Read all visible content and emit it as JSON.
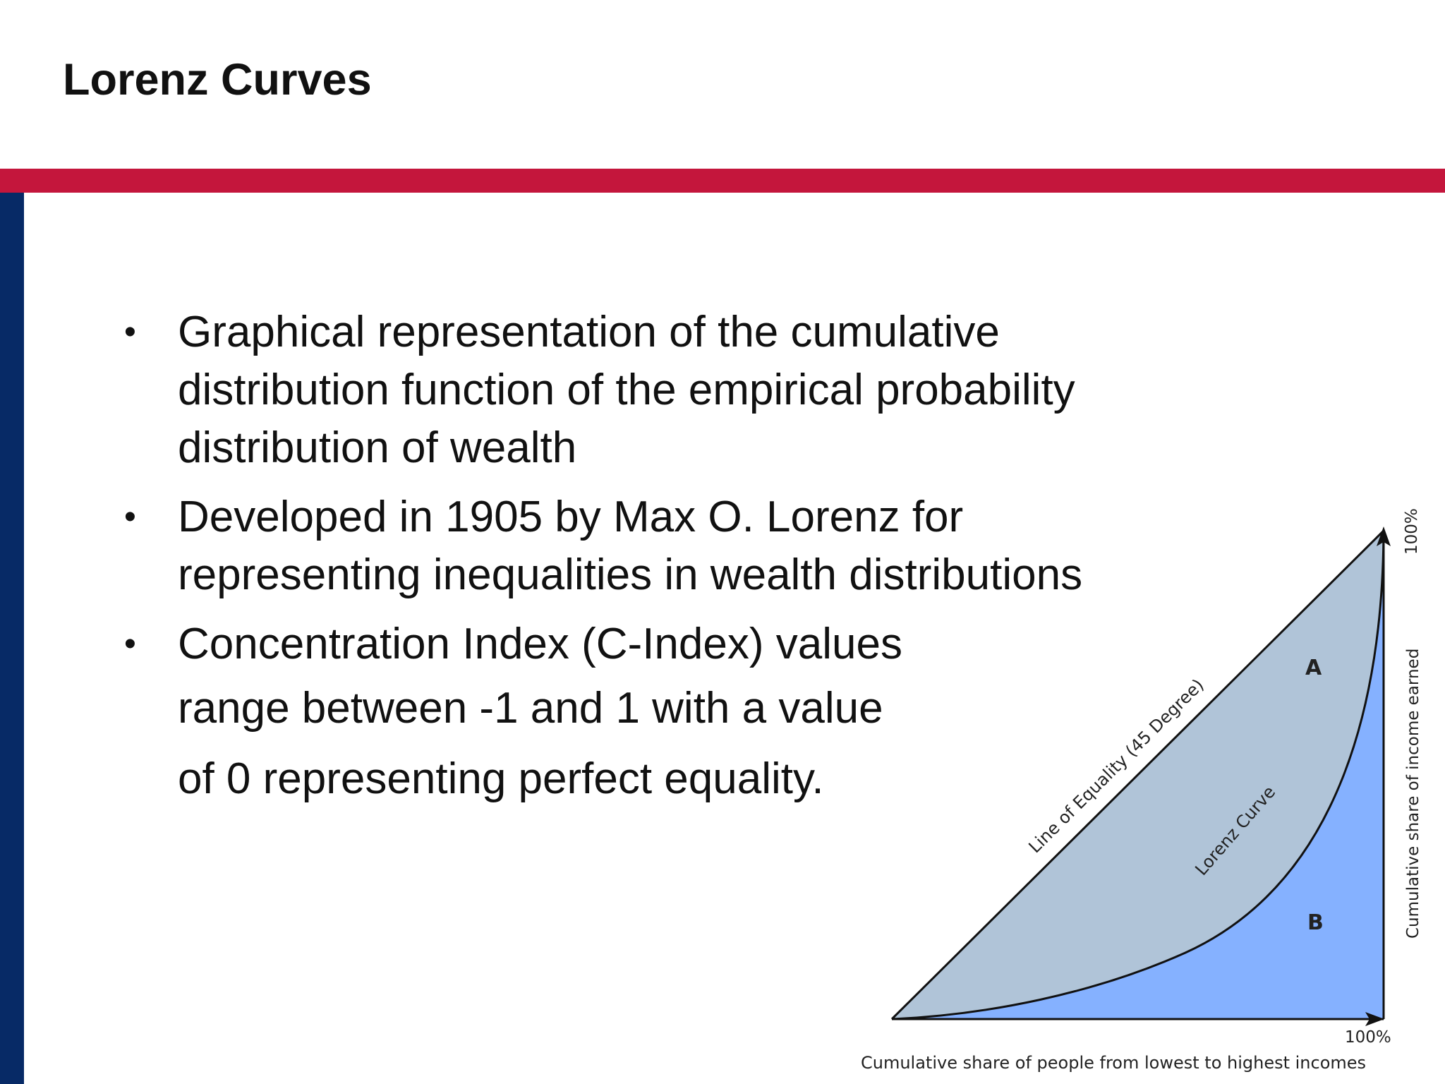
{
  "slide": {
    "title": "Lorenz Curves",
    "accent_red": "#c4163c",
    "accent_navy": "#072a66"
  },
  "bullets": [
    {
      "text": "Graphical representation of the cumulative distribution function of the empirical probability distribution of wealth"
    },
    {
      "text": "Developed in 1905 by Max O. Lorenz for representing inequalities in wealth distributions"
    },
    {
      "lines": [
        "Concentration Index (C-Index) values",
        "range between -1 and 1 with a value",
        "of 0 representing perfect equality."
      ]
    }
  ],
  "figure": {
    "equality_label": "Line of Equality (45 Degree)",
    "curve_label": "Lorenz Curve",
    "area_a": "A",
    "area_b": "B",
    "x_end_label": "100%",
    "y_end_label": "100%",
    "x_axis_label": "Cumulative share of people from lowest to highest incomes",
    "y_axis_label": "Cumulative share of income earned",
    "colors": {
      "area_a": "#b0c4d8",
      "area_b": "#85b1ff",
      "lines": "#111111"
    }
  }
}
